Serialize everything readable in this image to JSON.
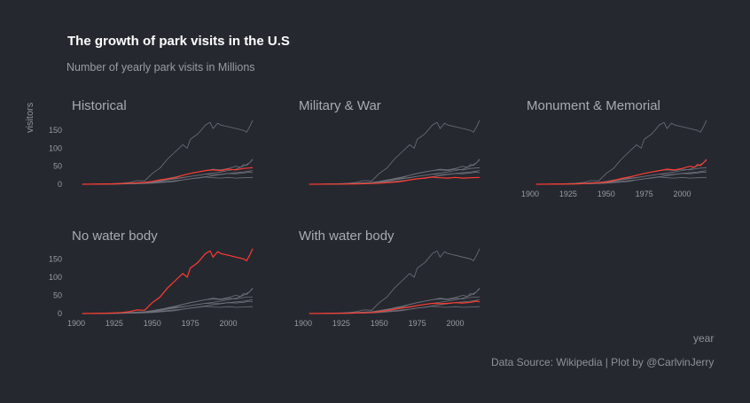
{
  "title": "The growth of park visits in the U.S",
  "subtitle": "Number of yearly park visits in Millions",
  "caption": "Data Source: Wikipedia | Plot by @CarlvinJerry",
  "colors": {
    "background": "#262830",
    "highlight": "#ff3b2f",
    "context": "#6f717a"
  },
  "chart_data": {
    "type": "line",
    "facets": [
      "Historical",
      "Military & War",
      "Monument & Memorial",
      "No water body",
      "With water body"
    ],
    "x_axis_label": "year",
    "y_axis_label": "visitors",
    "xlim": [
      1900,
      2016
    ],
    "ylim": [
      0,
      180
    ],
    "xticks": [
      1900,
      1925,
      1950,
      1975,
      2000
    ],
    "yticks": [
      0,
      50,
      100,
      150
    ],
    "grid": false,
    "series": [
      {
        "highlight_in": "No water body",
        "points": [
          [
            1904,
            0
          ],
          [
            1920,
            1
          ],
          [
            1930,
            3
          ],
          [
            1935,
            5
          ],
          [
            1940,
            10
          ],
          [
            1945,
            9
          ],
          [
            1950,
            30
          ],
          [
            1955,
            45
          ],
          [
            1960,
            70
          ],
          [
            1965,
            90
          ],
          [
            1970,
            110
          ],
          [
            1973,
            100
          ],
          [
            1975,
            125
          ],
          [
            1980,
            140
          ],
          [
            1985,
            165
          ],
          [
            1988,
            172
          ],
          [
            1990,
            155
          ],
          [
            1993,
            170
          ],
          [
            1995,
            165
          ],
          [
            2000,
            160
          ],
          [
            2005,
            155
          ],
          [
            2010,
            150
          ],
          [
            2012,
            145
          ],
          [
            2014,
            160
          ],
          [
            2016,
            178
          ]
        ]
      },
      {
        "highlight_in": "Historical",
        "points": [
          [
            1904,
            0
          ],
          [
            1925,
            1
          ],
          [
            1935,
            3
          ],
          [
            1945,
            5
          ],
          [
            1950,
            8
          ],
          [
            1955,
            12
          ],
          [
            1960,
            15
          ],
          [
            1965,
            18
          ],
          [
            1970,
            25
          ],
          [
            1975,
            30
          ],
          [
            1980,
            34
          ],
          [
            1985,
            38
          ],
          [
            1990,
            40
          ],
          [
            1995,
            38
          ],
          [
            2000,
            42
          ],
          [
            2005,
            40
          ],
          [
            2010,
            44
          ],
          [
            2016,
            46
          ]
        ]
      },
      {
        "highlight_in": "Monument & Memorial",
        "points": [
          [
            1904,
            0
          ],
          [
            1930,
            1
          ],
          [
            1940,
            3
          ],
          [
            1950,
            6
          ],
          [
            1955,
            10
          ],
          [
            1960,
            16
          ],
          [
            1965,
            20
          ],
          [
            1970,
            25
          ],
          [
            1975,
            30
          ],
          [
            1980,
            34
          ],
          [
            1985,
            38
          ],
          [
            1990,
            42
          ],
          [
            1995,
            40
          ],
          [
            2000,
            44
          ],
          [
            2005,
            50
          ],
          [
            2008,
            47
          ],
          [
            2010,
            55
          ],
          [
            2012,
            52
          ],
          [
            2014,
            60
          ],
          [
            2016,
            68
          ]
        ]
      },
      {
        "highlight_in": "Military & War",
        "points": [
          [
            1904,
            0
          ],
          [
            1925,
            0.5
          ],
          [
            1935,
            1
          ],
          [
            1945,
            2
          ],
          [
            1950,
            3
          ],
          [
            1960,
            6
          ],
          [
            1965,
            8
          ],
          [
            1970,
            12
          ],
          [
            1975,
            15
          ],
          [
            1980,
            17
          ],
          [
            1985,
            20
          ],
          [
            1990,
            18
          ],
          [
            1995,
            17
          ],
          [
            2000,
            19
          ],
          [
            2005,
            17
          ],
          [
            2010,
            18
          ],
          [
            2016,
            19
          ]
        ]
      },
      {
        "highlight_in": "With water body",
        "points": [
          [
            1904,
            0
          ],
          [
            1930,
            1
          ],
          [
            1945,
            3
          ],
          [
            1950,
            5
          ],
          [
            1955,
            8
          ],
          [
            1960,
            12
          ],
          [
            1965,
            15
          ],
          [
            1970,
            18
          ],
          [
            1975,
            22
          ],
          [
            1980,
            25
          ],
          [
            1985,
            28
          ],
          [
            1990,
            27
          ],
          [
            1995,
            28
          ],
          [
            2000,
            30
          ],
          [
            2005,
            29
          ],
          [
            2010,
            31
          ],
          [
            2014,
            34
          ],
          [
            2016,
            32
          ]
        ]
      },
      {
        "highlight_in": "",
        "points": [
          [
            1904,
            0
          ],
          [
            1930,
            1
          ],
          [
            1945,
            4
          ],
          [
            1955,
            10
          ],
          [
            1965,
            16
          ],
          [
            1975,
            22
          ],
          [
            1985,
            28
          ],
          [
            1995,
            34
          ],
          [
            2005,
            42
          ],
          [
            2010,
            50
          ],
          [
            2014,
            60
          ],
          [
            2016,
            70
          ]
        ]
      },
      {
        "highlight_in": "",
        "points": [
          [
            1904,
            0
          ],
          [
            1935,
            1
          ],
          [
            1950,
            4
          ],
          [
            1960,
            8
          ],
          [
            1970,
            12
          ],
          [
            1980,
            18
          ],
          [
            1990,
            24
          ],
          [
            2000,
            30
          ],
          [
            2010,
            34
          ],
          [
            2016,
            38
          ]
        ]
      }
    ]
  }
}
